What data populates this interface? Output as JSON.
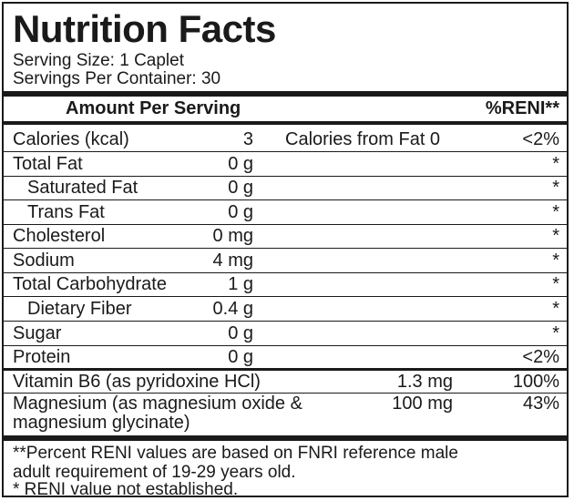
{
  "title": "Nutrition Facts",
  "serving_size": "Serving Size: 1 Caplet",
  "servings_per_container": "Servings Per Container: 30",
  "header": {
    "amount_per_serving": "Amount Per Serving",
    "reni": "%RENI**"
  },
  "calories": {
    "name": "Calories (kcal)",
    "amount": "3",
    "from_fat": "Calories from Fat 0",
    "pct": "<2%"
  },
  "nutrients": [
    {
      "name": "Total Fat",
      "amount": "0 g",
      "pct": "*"
    },
    {
      "name": "Saturated Fat",
      "amount": "0 g",
      "pct": "*"
    },
    {
      "name": "Trans Fat",
      "amount": "0 g",
      "pct": "*"
    },
    {
      "name": "Cholesterol",
      "amount": "0 mg",
      "pct": "*"
    },
    {
      "name": "Sodium",
      "amount": "4 mg",
      "pct": "*"
    },
    {
      "name": "Total Carbohydrate",
      "amount": "1 g",
      "pct": "*"
    },
    {
      "name": "Dietary Fiber",
      "amount": "0.4 g",
      "pct": "*"
    },
    {
      "name": "Sugar",
      "amount": "0 g",
      "pct": "*"
    },
    {
      "name": "Protein",
      "amount": "0 g",
      "pct": "<2%"
    }
  ],
  "vitamins": [
    {
      "name": "Vitamin B6 (as  pyridoxine HCl)",
      "amount": "1.3 mg",
      "pct": "100%"
    },
    {
      "name_line1": "Magnesium (as magnesium oxide &",
      "name_line2": "magnesium glycinate)",
      "amount": "100 mg",
      "pct": "43%"
    }
  ],
  "footnotes": {
    "line1": "**Percent RENI values are based on FNRI reference male",
    "line2": "adult requirement of 19-29 years old.",
    "line3": "* RENI value not established."
  }
}
